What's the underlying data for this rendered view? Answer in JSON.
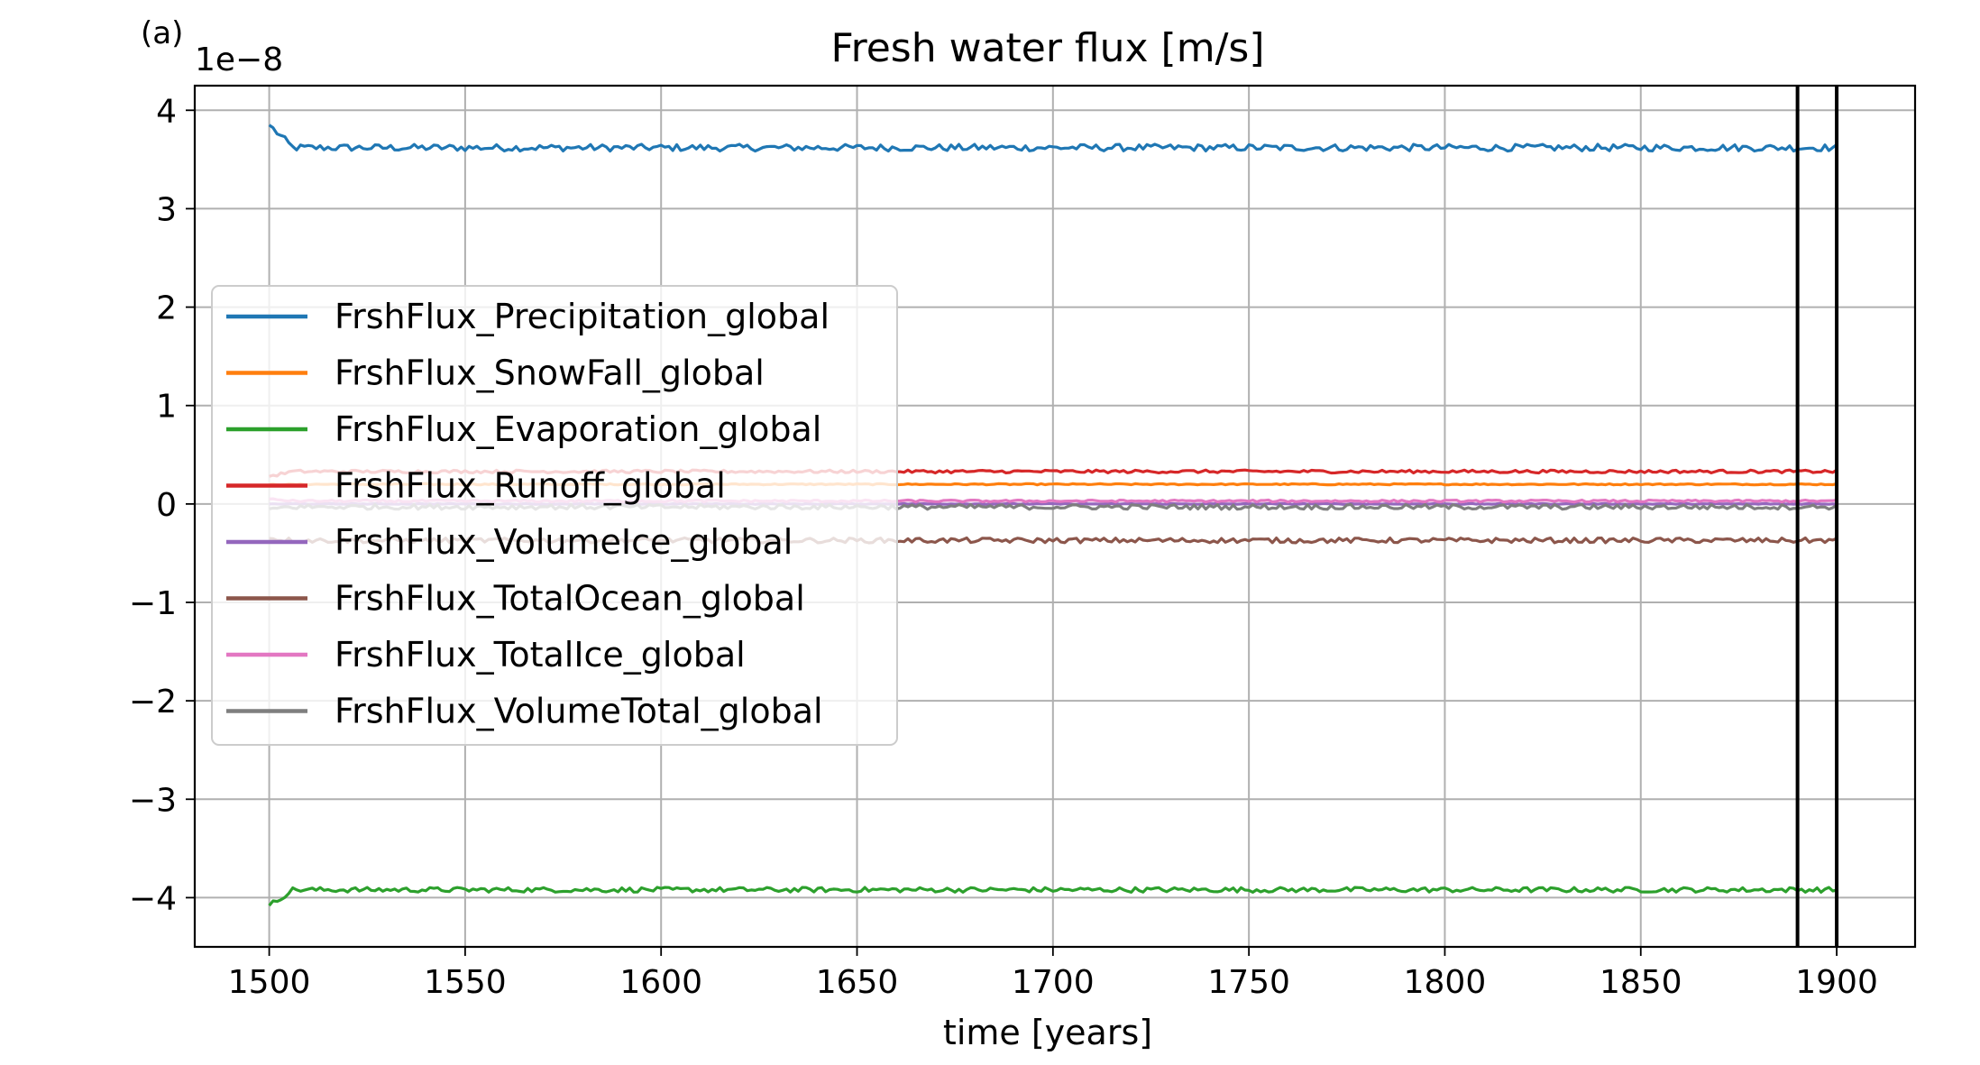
{
  "panel_label": "(a)",
  "chart_data": {
    "type": "line",
    "title": "Fresh water flux [m/s]",
    "xlabel": "time [years]",
    "ylabel": "",
    "y_offset_label": "1e−8",
    "y_scale_exponent": -8,
    "xlim": [
      1481,
      1920
    ],
    "ylim": [
      -4.5,
      4.25
    ],
    "x_ticks": [
      1500,
      1550,
      1600,
      1650,
      1700,
      1750,
      1800,
      1850,
      1900
    ],
    "x_tick_labels": [
      "1500",
      "1550",
      "1600",
      "1650",
      "1700",
      "1750",
      "1800",
      "1850",
      "1900"
    ],
    "y_ticks": [
      4,
      3,
      2,
      1,
      0,
      -1,
      -2,
      -3,
      -4
    ],
    "y_tick_labels": [
      "4",
      "3",
      "2",
      "1",
      "0",
      "−1",
      "−2",
      "−3",
      "−4"
    ],
    "grid": true,
    "legend_position": "center-left",
    "x_range_of_series": [
      1500,
      1900
    ],
    "vertical_lines": [
      {
        "x": 1890,
        "color": "#000000"
      },
      {
        "x": 1900,
        "color": "#000000"
      }
    ],
    "series": [
      {
        "name": "FrshFlux_Precipitation_global",
        "color": "#1f77b4",
        "start_value": 3.85,
        "mean": 3.62,
        "noise": 0.035
      },
      {
        "name": "FrshFlux_SnowFall_global",
        "color": "#ff7f0e",
        "start_value": 0.2,
        "mean": 0.2,
        "noise": 0.006
      },
      {
        "name": "FrshFlux_Evaporation_global",
        "color": "#2ca02c",
        "start_value": -4.08,
        "mean": -3.92,
        "noise": 0.025
      },
      {
        "name": "FrshFlux_Runoff_global",
        "color": "#d62728",
        "start_value": 0.28,
        "mean": 0.33,
        "noise": 0.015
      },
      {
        "name": "FrshFlux_VolumeIce_global",
        "color": "#9467bd",
        "start_value": 0.0,
        "mean": 0.0,
        "noise": 0.004
      },
      {
        "name": "FrshFlux_TotalOcean_global",
        "color": "#8c564b",
        "start_value": -0.35,
        "mean": -0.37,
        "noise": 0.025
      },
      {
        "name": "FrshFlux_TotalIce_global",
        "color": "#e377c2",
        "start_value": 0.05,
        "mean": 0.03,
        "noise": 0.01
      },
      {
        "name": "FrshFlux_VolumeTotal_global",
        "color": "#7f7f7f",
        "start_value": -0.05,
        "mean": -0.03,
        "noise": 0.025
      }
    ]
  }
}
